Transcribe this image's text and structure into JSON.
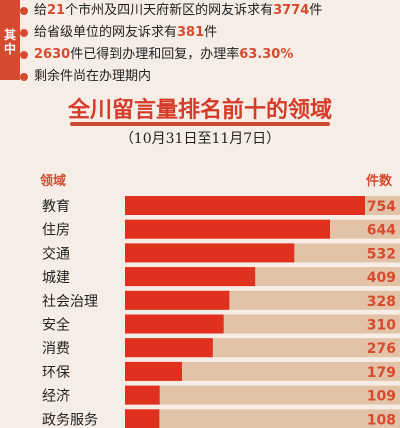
{
  "side_label": "其中",
  "bullets": [
    {
      "pre": "给",
      "num": "21",
      "post": "个市州及四川天府新区的网友诉求有",
      "num2": "3774",
      "post2": "件"
    },
    {
      "pre": "给省级单位的网友诉求有",
      "num": "381",
      "post": "件",
      "num2": "",
      "post2": ""
    },
    {
      "pre": "",
      "num": "2630",
      "post": "件已得到办理和回复，办理率",
      "num2": "63.30%",
      "post2": ""
    },
    {
      "pre": "剩余件尚在办理期内",
      "num": "",
      "post": "",
      "num2": "",
      "post2": ""
    }
  ],
  "header": {
    "left": "领域",
    "right": "件数"
  },
  "chart_data": {
    "type": "bar",
    "title": "全川留言量排名前十的领域",
    "subtitle": "（10月31日至11月7日）",
    "categories": [
      "教育",
      "住房",
      "交通",
      "城建",
      "社会治理",
      "安全",
      "消费",
      "环保",
      "经济",
      "政务服务"
    ],
    "values": [
      754,
      644,
      532,
      409,
      328,
      310,
      276,
      179,
      109,
      108
    ],
    "bar_color": "#e0311f",
    "track_color": "#e3c3a8"
  }
}
